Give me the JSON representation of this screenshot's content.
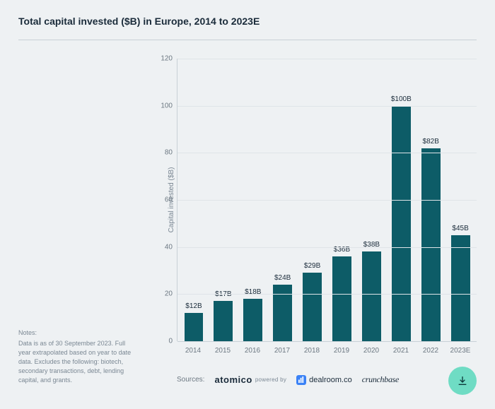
{
  "title": "Total capital invested ($B) in Europe, 2014 to 2023E",
  "notes": {
    "heading": "Notes:",
    "body": "Data is as of 30 September 2023. Full year extrapolated based on year to date data. Excludes the following: biotech, secondary transactions, debt, lending capital, and grants."
  },
  "chart": {
    "type": "bar",
    "ylabel": "Capital invested ($B)",
    "ylim": [
      0,
      120
    ],
    "ytick_step": 20,
    "yticks": [
      0,
      20,
      40,
      60,
      80,
      100,
      120
    ],
    "grid_color": "#dfe4e8",
    "axis_color": "#c8d0d6",
    "background_color": "#eef1f3",
    "bar_color": "#0d5c67",
    "bar_width": 0.64,
    "label_fontsize": 10,
    "categories": [
      "2014",
      "2015",
      "2016",
      "2017",
      "2018",
      "2019",
      "2020",
      "2021",
      "2022",
      "2023E"
    ],
    "values": [
      12,
      17,
      18,
      24,
      29,
      36,
      38,
      100,
      82,
      45
    ],
    "value_labels": [
      "$12B",
      "$17B",
      "$18B",
      "$24B",
      "$29B",
      "$36B",
      "$38B",
      "$100B",
      "$82B",
      "$45B"
    ]
  },
  "sources": {
    "label": "Sources:",
    "atomico": "atomico",
    "powered_by": "powered by",
    "dealroom": "dealroom.co",
    "crunchbase": "crunchbase"
  },
  "download_icon": "download-icon"
}
